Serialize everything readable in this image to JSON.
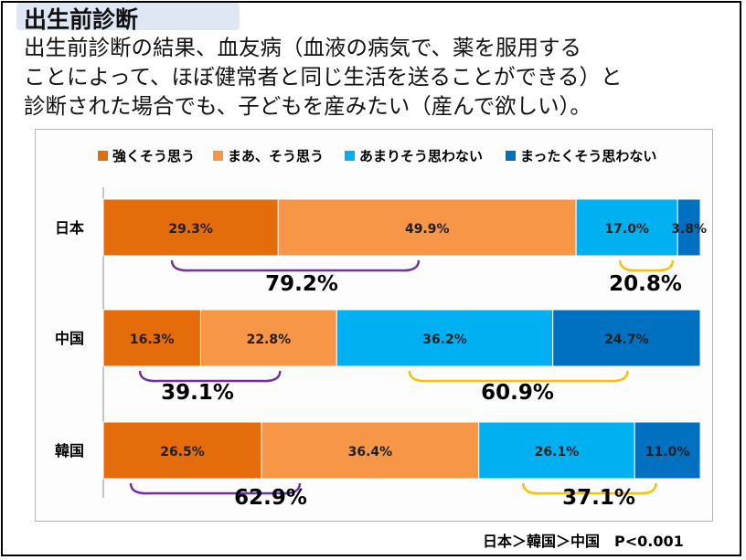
{
  "page": {
    "title": "出生前診断",
    "question_lines": [
      "出生前診断の結果、血友病（血液の病気で、薬を服用する",
      "ことによって、ほぼ健常者と同じ生活を送ることができる）と",
      "診断された場合でも、子どもを産みたい（産んで欲しい）。"
    ],
    "footnote": "日本＞韓国＞中国　P<0.001"
  },
  "chart_data": {
    "type": "bar",
    "orientation": "horizontal",
    "stacked": true,
    "percent_stacked": true,
    "categories": [
      "日本",
      "中国",
      "韓国"
    ],
    "series": [
      {
        "name": "強くそう思う",
        "color": "#e46c0a",
        "values": [
          29.3,
          16.3,
          26.5
        ],
        "labels": [
          "29.3%",
          "16.3%",
          "26.5%"
        ]
      },
      {
        "name": "まあ、そう思う",
        "color": "#f79646",
        "values": [
          49.9,
          22.8,
          36.4
        ],
        "labels": [
          "49.9%",
          "22.8%",
          "36.4%"
        ]
      },
      {
        "name": "あまりそう思わない",
        "color": "#00b0f0",
        "values": [
          17.0,
          36.2,
          26.1
        ],
        "labels": [
          "17.0%",
          "36.2%",
          "26.1%"
        ]
      },
      {
        "name": "まったくそう思わない",
        "color": "#0070c0",
        "values": [
          3.8,
          24.7,
          11.0
        ],
        "labels": [
          "3.8%",
          "24.7%",
          "11.0%"
        ]
      }
    ],
    "legend_position": "top",
    "grid": false,
    "annotations": [
      {
        "category": "日本",
        "group": "agree",
        "label": "79.2%",
        "bracket_color": "#7030a0"
      },
      {
        "category": "日本",
        "group": "disagree",
        "label": "20.8%",
        "bracket_color": "#ffc000"
      },
      {
        "category": "中国",
        "group": "agree",
        "label": "39.1%",
        "bracket_color": "#7030a0"
      },
      {
        "category": "中国",
        "group": "disagree",
        "label": "60.9%",
        "bracket_color": "#ffc000"
      },
      {
        "category": "韓国",
        "group": "agree",
        "label": "62.9%",
        "bracket_color": "#7030a0"
      },
      {
        "category": "韓国",
        "group": "disagree",
        "label": "37.1%",
        "bracket_color": "#ffc000"
      }
    ]
  }
}
